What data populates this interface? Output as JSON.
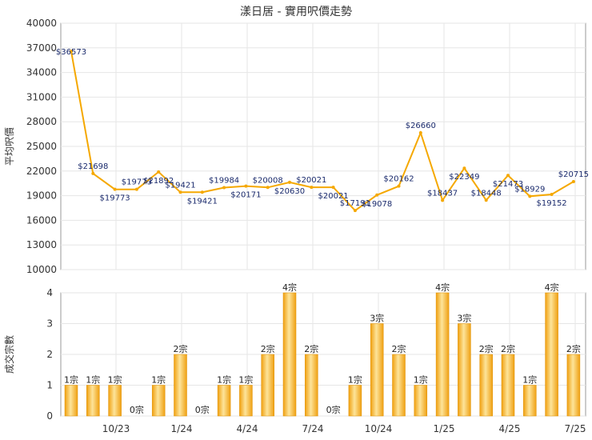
{
  "chart_data": [
    {
      "type": "line",
      "title": "漾日居 - 實用呎價走勢",
      "ylabel": "平均呎價",
      "ylim": [
        10000,
        40000
      ],
      "yticks": [
        "40000",
        "37000",
        "34000",
        "31000",
        "28000",
        "25000",
        "22000",
        "19000",
        "16000",
        "13000",
        "10000"
      ],
      "series_color": "#f5a800",
      "points": [
        {
          "v": 36573,
          "label": "$36573"
        },
        {
          "v": 21698,
          "label": "$21698"
        },
        {
          "v": 19773,
          "label": "$19773"
        },
        {
          "v": 19773,
          "label": "$19773"
        },
        {
          "v": 21892,
          "label": "$21892"
        },
        {
          "v": 19421,
          "label": "$19421"
        },
        {
          "v": 19421,
          "label": "$19421"
        },
        {
          "v": 19984,
          "label": "$19984"
        },
        {
          "v": 20171,
          "label": "$20171"
        },
        {
          "v": 20008,
          "label": "$20008"
        },
        {
          "v": 20630,
          "label": "$20630"
        },
        {
          "v": 20021,
          "label": "$20021"
        },
        {
          "v": 20021,
          "label": "$20021"
        },
        {
          "v": 17191,
          "label": "$17191"
        },
        {
          "v": 19078,
          "label": "$19078"
        },
        {
          "v": 20162,
          "label": "$20162"
        },
        {
          "v": 26660,
          "label": "$26660"
        },
        {
          "v": 18437,
          "label": "$18437"
        },
        {
          "v": 22349,
          "label": "$22349"
        },
        {
          "v": 18448,
          "label": "$18448"
        },
        {
          "v": 21473,
          "label": "$21473"
        },
        {
          "v": 18929,
          "label": "$18929"
        },
        {
          "v": 19152,
          "label": "$19152"
        },
        {
          "v": 20715,
          "label": "$20715"
        }
      ]
    },
    {
      "type": "bar",
      "ylabel": "成交宗數",
      "ylim": [
        0,
        4
      ],
      "yticks": [
        "4",
        "3",
        "2",
        "1",
        "0"
      ],
      "xticks": [
        "10/23",
        "1/24",
        "4/24",
        "7/24",
        "10/24",
        "1/25",
        "4/25",
        "7/25"
      ],
      "bars": [
        {
          "v": 1,
          "label": "1宗"
        },
        {
          "v": 1,
          "label": "1宗"
        },
        {
          "v": 1,
          "label": "1宗"
        },
        {
          "v": 0,
          "label": "0宗"
        },
        {
          "v": 1,
          "label": "1宗"
        },
        {
          "v": 2,
          "label": "2宗"
        },
        {
          "v": 0,
          "label": "0宗"
        },
        {
          "v": 1,
          "label": "1宗"
        },
        {
          "v": 1,
          "label": "1宗"
        },
        {
          "v": 2,
          "label": "2宗"
        },
        {
          "v": 4,
          "label": "4宗"
        },
        {
          "v": 2,
          "label": "2宗"
        },
        {
          "v": 0,
          "label": "0宗"
        },
        {
          "v": 1,
          "label": "1宗"
        },
        {
          "v": 3,
          "label": "3宗"
        },
        {
          "v": 2,
          "label": "2宗"
        },
        {
          "v": 1,
          "label": "1宗"
        },
        {
          "v": 4,
          "label": "4宗"
        },
        {
          "v": 3,
          "label": "3宗"
        },
        {
          "v": 2,
          "label": "2宗"
        },
        {
          "v": 2,
          "label": "2宗"
        },
        {
          "v": 1,
          "label": "1宗"
        },
        {
          "v": 4,
          "label": "4宗"
        },
        {
          "v": 2,
          "label": "2宗"
        }
      ]
    }
  ]
}
